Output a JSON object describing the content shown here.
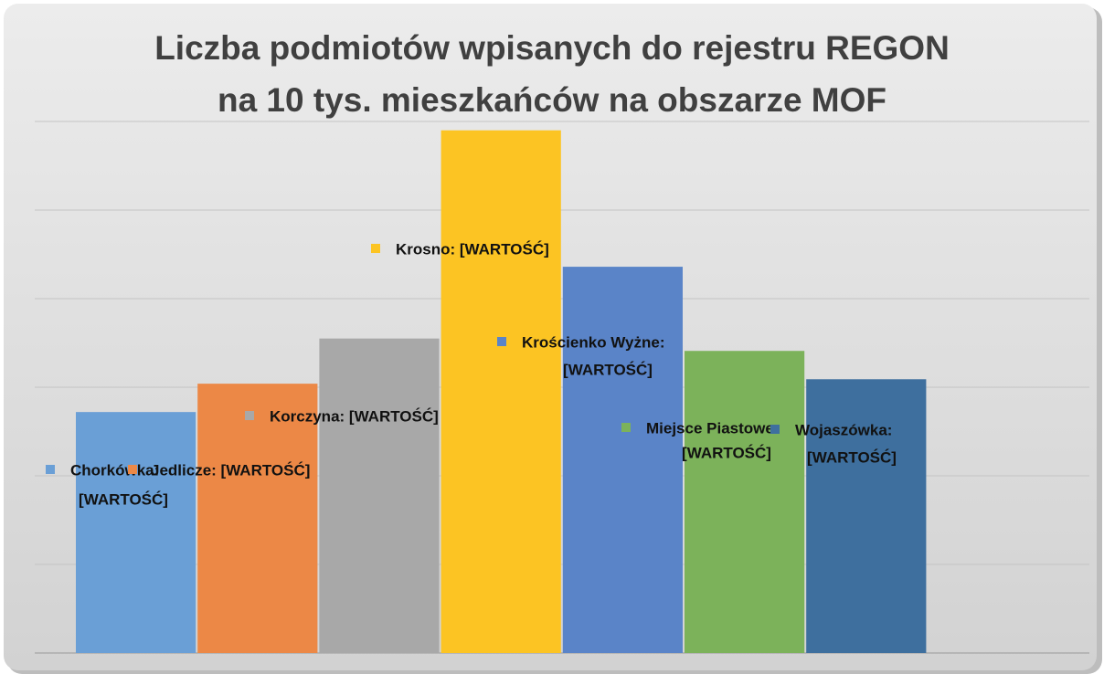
{
  "chart_data": {
    "type": "bar",
    "title": "Liczba podmiotów wpisanych do rejestru REGON na 10 tys. mieszkańców na obszarze MOF",
    "categories": [
      "Chorkówka",
      "Jedlicze",
      "Korczyna",
      "Krosno",
      "Krościenko Wyżne",
      "Miejsce Piastowe",
      "Wojaszówka"
    ],
    "values": [
      2.72,
      3.04,
      3.55,
      5.9,
      4.36,
      3.41,
      3.09
    ],
    "colors": [
      "#6a9fd6",
      "#ec8846",
      "#a8a8a8",
      "#fcc423",
      "#5a84c8",
      "#7cb25a",
      "#3e6f9e"
    ],
    "data_labels": [
      [
        "Chorkówka:",
        "[WARTOŚĆ]"
      ],
      [
        "Jedlicze: [WARTOŚĆ]"
      ],
      [
        "Korczyna: [WARTOŚĆ]"
      ],
      [
        "Krosno: [WARTOŚĆ]"
      ],
      [
        "Krościenko Wyżne:",
        "[WARTOŚĆ]"
      ],
      [
        "Miejsce Piastowe:",
        "[WARTOŚĆ]"
      ],
      [
        "Wojaszówka:",
        "[WARTOŚĆ]"
      ]
    ],
    "ylim": [
      0,
      6
    ],
    "yticks": [
      0,
      1,
      2,
      3,
      4,
      5,
      6
    ],
    "grid": true
  }
}
